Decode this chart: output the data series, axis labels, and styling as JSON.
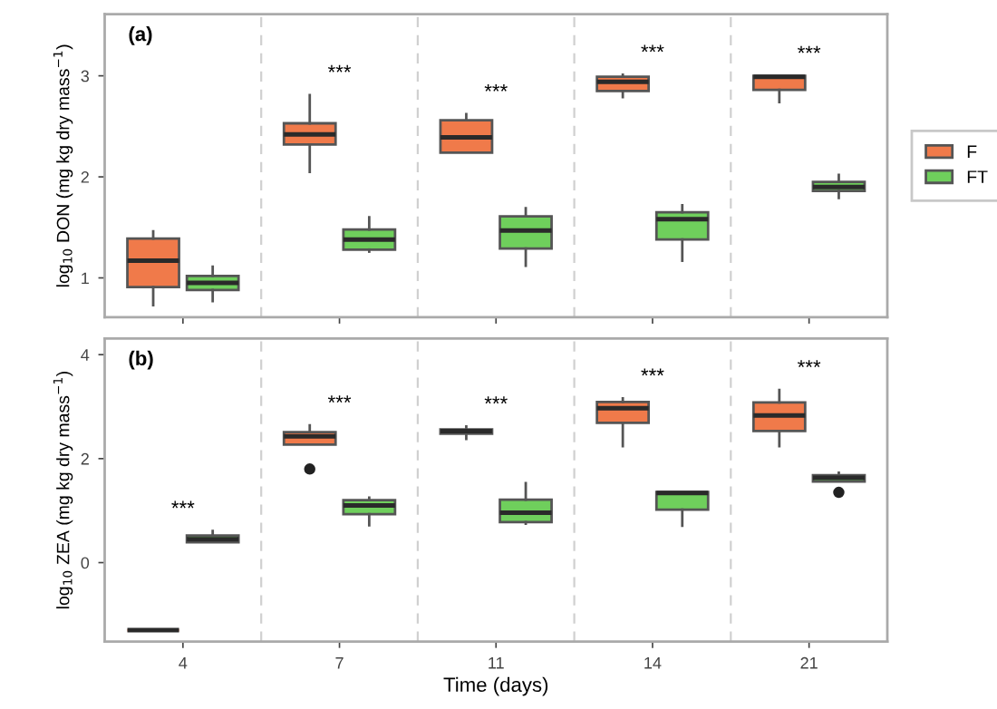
{
  "chart_data": [
    {
      "type": "box",
      "categories": [
        "4",
        "7",
        "11",
        "14",
        "21"
      ],
      "ylabel": "log$_{10}$ DON (mg kg dry mass$^{−1}$)",
      "ylim": [
        0.61,
        3.61
      ],
      "yticks": [
        1,
        2,
        3
      ],
      "tick_labels": "y",
      "legend": "right",
      "grid": false,
      "annotations": [
        "(a)",
        "***",
        "***",
        "***",
        "***"
      ],
      "series": [
        {
          "name": "F",
          "color": "#f07a4a",
          "boxes": [
            {
              "low": 0.73,
              "q1": 0.91,
              "median": 1.17,
              "q3": 1.39,
              "high": 1.46
            },
            {
              "low": 2.05,
              "q1": 2.32,
              "median": 2.42,
              "q3": 2.53,
              "high": 2.81
            },
            {
              "low": 2.24,
              "q1": 2.24,
              "median": 2.39,
              "q3": 2.56,
              "high": 2.62
            },
            {
              "low": 2.79,
              "q1": 2.85,
              "median": 2.94,
              "q3": 2.99,
              "high": 3.01
            },
            {
              "low": 2.74,
              "q1": 2.86,
              "median": 2.99,
              "q3": 3.0,
              "high": 3.0
            }
          ]
        },
        {
          "name": "FT",
          "color": "#6fcf5c",
          "boxes": [
            {
              "low": 0.77,
              "q1": 0.88,
              "median": 0.95,
              "q3": 1.02,
              "high": 1.11
            },
            {
              "low": 1.26,
              "q1": 1.28,
              "median": 1.38,
              "q3": 1.48,
              "high": 1.6
            },
            {
              "low": 1.12,
              "q1": 1.29,
              "median": 1.47,
              "q3": 1.61,
              "high": 1.69
            },
            {
              "low": 1.17,
              "q1": 1.38,
              "median": 1.58,
              "q3": 1.65,
              "high": 1.72
            },
            {
              "low": 1.79,
              "q1": 1.86,
              "median": 1.9,
              "q3": 1.95,
              "high": 2.02
            }
          ]
        }
      ]
    },
    {
      "type": "box",
      "categories": [
        "4",
        "7",
        "11",
        "14",
        "21"
      ],
      "xlabel": "Time (days)",
      "ylabel": "log$_{10}$ ZEA (mg kg dry mass$^{−1}$)",
      "ylim": [
        -1.52,
        4.31
      ],
      "yticks": [
        0,
        2,
        4
      ],
      "grid": false,
      "annotations": [
        "(b)",
        "***",
        "***",
        "***",
        "***",
        "***"
      ],
      "series": [
        {
          "color": "#f07a4a",
          "boxes": [
            {
              "low": -1.3,
              "q1": -1.3,
              "median": -1.3,
              "q3": -1.3,
              "high": -1.3
            },
            {
              "low": 2.27,
              "q1": 2.27,
              "median": 2.43,
              "q3": 2.51,
              "high": 2.64,
              "outliers": [
                1.8
              ]
            },
            {
              "low": 2.38,
              "q1": 2.48,
              "median": 2.53,
              "q3": 2.56,
              "high": 2.62
            },
            {
              "low": 2.24,
              "q1": 2.69,
              "median": 2.97,
              "q3": 3.09,
              "high": 3.16
            },
            {
              "low": 2.24,
              "q1": 2.53,
              "median": 2.83,
              "q3": 3.08,
              "high": 3.32
            }
          ]
        },
        {
          "color": "#6fcf5c",
          "boxes": [
            {
              "low": 0.39,
              "q1": 0.39,
              "median": 0.45,
              "q3": 0.52,
              "high": 0.61
            },
            {
              "low": 0.72,
              "q1": 0.93,
              "median": 1.1,
              "q3": 1.2,
              "high": 1.25
            },
            {
              "low": 0.75,
              "q1": 0.78,
              "median": 0.96,
              "q3": 1.21,
              "high": 1.53
            },
            {
              "low": 0.71,
              "q1": 1.02,
              "median": 1.34,
              "q3": 1.36,
              "high": 1.36
            },
            {
              "low": 1.56,
              "q1": 1.56,
              "median": 1.63,
              "q3": 1.68,
              "high": 1.73,
              "outliers": [
                1.35
              ]
            }
          ]
        }
      ]
    }
  ]
}
